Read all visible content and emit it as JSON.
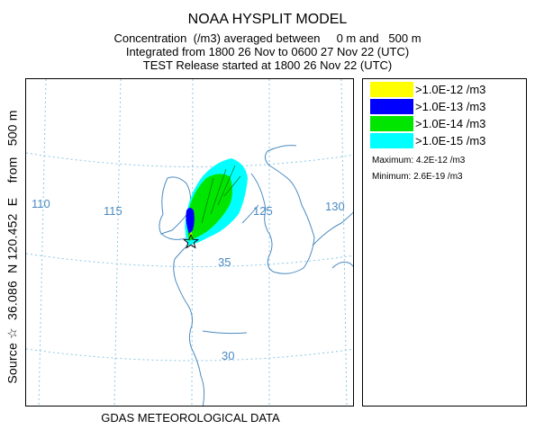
{
  "title": "NOAA HYSPLIT MODEL",
  "subtitle_lines": [
    "Concentration  (/m3) averaged between     0 m and   500 m",
    "Integrated from 1800 26 Nov to 0600 27 Nov 22 (UTC)",
    "TEST Release started at 1800 26 Nov 22 (UTC)"
  ],
  "footer": "GDAS METEOROLOGICAL DATA",
  "side_label": "Source ☆  36.086  N 120.452  E    from   500 m",
  "map": {
    "longitude_labels": [
      "110",
      "115",
      "125",
      "130"
    ],
    "latitude_labels": [
      "35",
      "30"
    ],
    "source_marker": "star-icon",
    "colors": {
      "grid": "#8cc8e6",
      "coast": "#4a8ac0"
    }
  },
  "legend": {
    "items": [
      {
        "label": ">1.0E-12 /m3",
        "color": "#ffff00"
      },
      {
        "label": ">1.0E-13 /m3",
        "color": "#0000ff"
      },
      {
        "label": ">1.0E-14 /m3",
        "color": "#00e600"
      },
      {
        "label": ">1.0E-15 /m3",
        "color": "#00ffff"
      }
    ],
    "maximum": "Maximum: 4.2E-12 /m3",
    "minimum": "Minimum: 2.6E-19 /m3"
  }
}
